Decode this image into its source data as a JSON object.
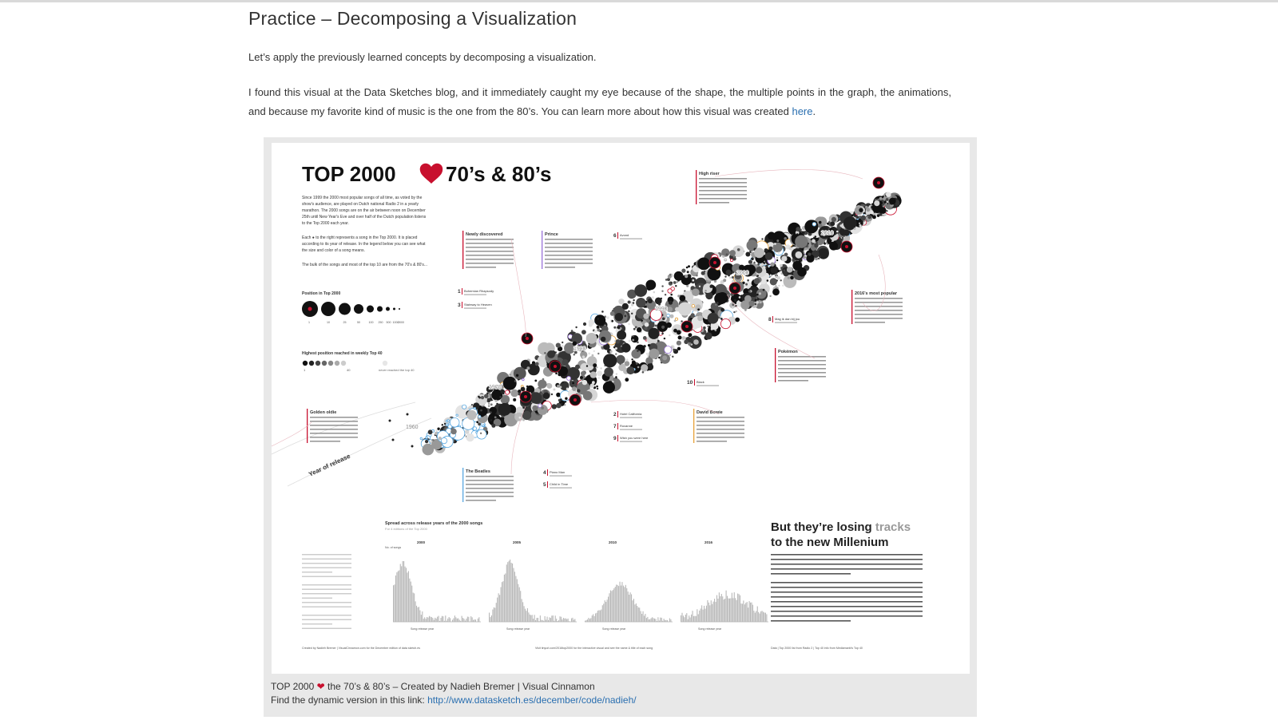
{
  "article": {
    "title": "Practice – Decomposing a Visualization",
    "intro": "Let’s apply the previously learned concepts by decomposing a visualization.",
    "paragraph_text": "I found this visual at the Data Sketches blog, and it immediately caught my eye because of the shape, the multiple points in the graph, the animations, and because my favorite kind of music is the one from the 80’s. You can learn more about how this visual was created ",
    "paragraph_link": "here",
    "paragraph_end": "."
  },
  "poster": {
    "title_left": "TOP 2000",
    "title_right": "70’s & 80’s",
    "intro_lines": [
      "Since 1999 the 2000 most popular songs of all time, as voted by the",
      "show's audience, are played on Dutch national Radio 2 in a yearly",
      "marathon. The 2000 songs are on the air between noon on December",
      "25th until New Year's Eve and over half of the Dutch population listens",
      "to the Top 2000 each year."
    ],
    "intro_lines2": [
      "Each ● to the right represents a song in the Top 2000. It is placed",
      "according to its year of release. In the legend below you can see what",
      "the size and color of a song means."
    ],
    "intro_line3": "The bulk of the songs and most of the top 10 are from the 70's & 80's...",
    "legend_size_title": "Position in Top 2000",
    "legend_size_ticks": [
      "1",
      "10",
      "25",
      "50",
      "100",
      "250",
      "500",
      "1000",
      "2000"
    ],
    "legend_color_title": "Highest position reached in weekly Top 40",
    "legend_color_ticks": [
      "1",
      "40"
    ],
    "legend_color_note": "never reached the top 40",
    "decades": [
      "1960",
      "1970",
      "1980",
      "1990",
      "2000",
      "2010"
    ],
    "axis_label": "Year of release",
    "annotations": {
      "golden_oldie": "Golden oldie",
      "newly_discovered": "Newly discovered",
      "prince": "Prince",
      "high_riser": "High riser",
      "most_popular_2016": "2016's most popular",
      "pokemon": "Pokémon",
      "david_bowie": "David Bowie",
      "the_beatles": "The Beatles"
    },
    "ranked_songs": [
      {
        "rank": "1",
        "title": "Bohemian Rhapsody"
      },
      {
        "rank": "3",
        "title": "Stairway to Heaven"
      },
      {
        "rank": "6",
        "title": "Avond"
      },
      {
        "rank": "8",
        "title": "Mag ik dan bij jou"
      },
      {
        "rank": "10",
        "title": "Black"
      },
      {
        "rank": "2",
        "title": "Hotel California"
      },
      {
        "rank": "7",
        "title": "Roxanne"
      },
      {
        "rank": "9",
        "title": "Wish you were here"
      },
      {
        "rank": "4",
        "title": "Piano Man"
      },
      {
        "rank": "5",
        "title": "Child in Time"
      }
    ],
    "spread_title": "Spread across release years of the 2000 songs",
    "spread_subtitle": "For 4 editions of the Top 2000",
    "histogram_editions": [
      "2000",
      "2005",
      "2010",
      "2016"
    ],
    "histogram_xlabel": "Song release year",
    "histogram_ylabel": "No. of songs",
    "losing_line1": "But they’re losing",
    "losing_word": "tracks",
    "losing_line2": "to the new Millenium",
    "credit_left": "Created by Nadieh Bremer | VisualCinnamon.com for the December edition of data sketch.es",
    "credit_mid": "Visit tinyurl.com/2016top2000 for the interactive visual and see the name & title of each song",
    "credit_right": "Data | Top 2000 list from Radio 2 | Top 40 info from Mediamarkt's Top 40"
  },
  "caption": {
    "line1_a": "TOP 2000 ",
    "line1_b": " the 70’s & 80’s – Created by Nadieh Bremer | Visual Cinnamon",
    "line2_label": "Find the dynamic version in this link: ",
    "line2_link": "http://www.datasketch.es/december/code/nadieh/"
  },
  "colors": {
    "accent": "#c8102e",
    "link": "#2a6fb0",
    "frame": "#e8e8e8"
  }
}
